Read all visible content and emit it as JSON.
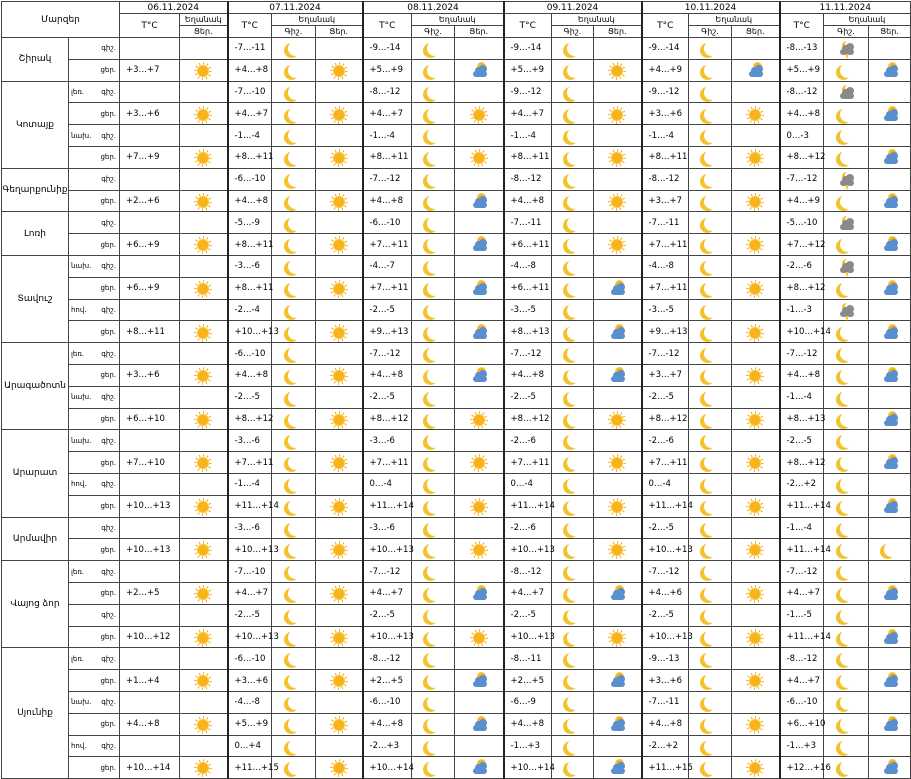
{
  "header": {
    "region_label": "Մարզեր",
    "temp_label": "T°C",
    "weather_label": "Եղանակ",
    "night_abbr": "Գիշ.",
    "day_abbr": "Ցեր.",
    "first_day_abbr": "Ցեր.",
    "dates": [
      "06.11.2024",
      "07.11.2024",
      "08.11.2024",
      "09.11.2024",
      "10.11.2024",
      "11.11.2024"
    ]
  },
  "regions": [
    {
      "name": "Շիրակ",
      "subs": [
        {
          "label": "",
          "periods": [
            {
              "p": "գիշ.",
              "t0": "",
              "t": [
                "-7…-11",
                "-9…-14",
                "-9…-14",
                "-9…-14",
                "-8…-13"
              ],
              "w": [
                "moon",
                "moon",
                "moon",
                "moon",
                "moon-cloud-storm"
              ]
            },
            {
              "p": "ցեր.",
              "t0": "+3…+7",
              "w0": "sun",
              "t": [
                "+4…+8",
                "+5…+9",
                "+5…+9",
                "+4…+9",
                "+5…+9"
              ],
              "w": [
                "sun",
                "sun-cloud",
                "sun",
                "sun-cloud",
                "sun-cloud"
              ]
            }
          ]
        }
      ]
    },
    {
      "name": "Կոտայք",
      "subs": [
        {
          "label": "լեռ.",
          "periods": [
            {
              "p": "գիշ.",
              "t0": "",
              "t": [
                "-7…-10",
                "-8…-12",
                "-9…-12",
                "-9…-12",
                "-8…-12"
              ],
              "w": [
                "moon",
                "moon",
                "moon",
                "moon",
                "moon-cloud-gray"
              ]
            },
            {
              "p": "ցեր.",
              "t0": "+3…+6",
              "w0": "sun",
              "t": [
                "+4…+7",
                "+4…+7",
                "+4…+7",
                "+3…+6",
                "+4…+8"
              ],
              "w": [
                "sun",
                "sun",
                "sun",
                "sun",
                "sun-cloud"
              ]
            }
          ]
        },
        {
          "label": "նախ.",
          "periods": [
            {
              "p": "գիշ.",
              "t0": "",
              "t": [
                "-1…-4",
                "-1…-4",
                "-1…-4",
                "-1…-4",
                "0…-3"
              ],
              "w": [
                "moon",
                "moon",
                "moon",
                "moon",
                "moon"
              ]
            },
            {
              "p": "ցեր.",
              "t0": "+7…+9",
              "w0": "sun",
              "t": [
                "+8…+11",
                "+8…+11",
                "+8…+11",
                "+8…+11",
                "+8…+12"
              ],
              "w": [
                "sun",
                "sun",
                "sun",
                "sun",
                "sun-cloud"
              ]
            }
          ]
        }
      ]
    },
    {
      "name": "Գեղարքունիք",
      "subs": [
        {
          "label": "",
          "periods": [
            {
              "p": "գիշ.",
              "t0": "",
              "t": [
                "-6…-10",
                "-7…-12",
                "-8…-12",
                "-8…-12",
                "-7…-12"
              ],
              "w": [
                "moon",
                "moon",
                "moon",
                "moon",
                "moon-cloud-storm"
              ]
            },
            {
              "p": "ցեր.",
              "t0": "+2…+6",
              "w0": "sun",
              "t": [
                "+4…+8",
                "+4…+8",
                "+4…+8",
                "+3…+7",
                "+4…+9"
              ],
              "w": [
                "sun",
                "sun-cloud",
                "sun",
                "sun",
                "sun-cloud"
              ]
            }
          ]
        }
      ]
    },
    {
      "name": "Լոռի",
      "subs": [
        {
          "label": "",
          "periods": [
            {
              "p": "գիշ.",
              "t0": "",
              "t": [
                "-5…-9",
                "-6…-10",
                "-7…-11",
                "-7…-11",
                "-5…-10"
              ],
              "w": [
                "moon",
                "moon",
                "moon",
                "moon",
                "moon-cloud-gray"
              ]
            },
            {
              "p": "ցեր.",
              "t0": "+6…+9",
              "w0": "sun",
              "t": [
                "+8…+11",
                "+7…+11",
                "+6…+11",
                "+7…+11",
                "+7…+12"
              ],
              "w": [
                "sun",
                "sun-cloud",
                "sun",
                "sun",
                "sun-cloud"
              ]
            }
          ]
        }
      ]
    },
    {
      "name": "Տավուշ",
      "subs": [
        {
          "label": "նախ.",
          "periods": [
            {
              "p": "գիշ.",
              "t0": "",
              "t": [
                "-3…-6",
                "-4…-7",
                "-4…-8",
                "-4…-8",
                "-2…-6"
              ],
              "w": [
                "moon",
                "moon",
                "moon",
                "moon",
                "moon-cloud-storm"
              ]
            },
            {
              "p": "ցեր.",
              "t0": "+6…+9",
              "w0": "sun",
              "t": [
                "+8…+11",
                "+7…+11",
                "+6…+11",
                "+7…+11",
                "+8…+12"
              ],
              "w": [
                "sun",
                "sun-cloud",
                "sun-cloud",
                "sun",
                "sun-cloud"
              ]
            }
          ]
        },
        {
          "label": "հով.",
          "periods": [
            {
              "p": "գիշ.",
              "t0": "",
              "t": [
                "-2…-4",
                "-2…-5",
                "-3…-5",
                "-3…-5",
                "-1…-3"
              ],
              "w": [
                "moon",
                "moon",
                "moon",
                "moon",
                "moon-cloud-storm"
              ]
            },
            {
              "p": "ցեր.",
              "t0": "+8…+11",
              "w0": "sun",
              "t": [
                "+10…+13",
                "+9…+13",
                "+8…+13",
                "+9…+13",
                "+10…+14"
              ],
              "w": [
                "sun",
                "sun-cloud",
                "sun-cloud",
                "sun",
                "sun-cloud"
              ]
            }
          ]
        }
      ]
    },
    {
      "name": "Արագածոտն",
      "subs": [
        {
          "label": "լեռ.",
          "periods": [
            {
              "p": "գիշ.",
              "t0": "",
              "t": [
                "-6…-10",
                "-7…-12",
                "-7…-12",
                "-7…-12",
                "-7…-12"
              ],
              "w": [
                "moon",
                "moon",
                "moon",
                "moon",
                "moon"
              ]
            },
            {
              "p": "ցեր.",
              "t0": "+3…+6",
              "w0": "sun",
              "t": [
                "+4…+8",
                "+4…+8",
                "+4…+8",
                "+3…+7",
                "+4…+8"
              ],
              "w": [
                "sun",
                "sun-cloud",
                "sun-cloud",
                "sun",
                "sun-cloud"
              ]
            }
          ]
        },
        {
          "label": "նախ.",
          "periods": [
            {
              "p": "գիշ.",
              "t0": "",
              "t": [
                "-2…-5",
                "-2…-5",
                "-2…-5",
                "-2…-5",
                "-1…-4"
              ],
              "w": [
                "moon",
                "moon",
                "moon",
                "moon",
                "moon"
              ]
            },
            {
              "p": "ցեր.",
              "t0": "+6…+10",
              "w0": "sun",
              "t": [
                "+8…+12",
                "+8…+12",
                "+8…+12",
                "+8…+12",
                "+8…+13"
              ],
              "w": [
                "sun",
                "sun",
                "sun",
                "sun",
                "sun-cloud"
              ]
            }
          ]
        }
      ]
    },
    {
      "name": "Արարատ",
      "subs": [
        {
          "label": "նախ.",
          "periods": [
            {
              "p": "գիշ.",
              "t0": "",
              "t": [
                "-3…-6",
                "-3…-6",
                "-2…-6",
                "-2…-6",
                "-2…-5"
              ],
              "w": [
                "moon",
                "moon",
                "moon",
                "moon",
                "moon"
              ]
            },
            {
              "p": "ցեր.",
              "t0": "+7…+10",
              "w0": "sun",
              "t": [
                "+7…+11",
                "+7…+11",
                "+7…+11",
                "+7…+11",
                "+8…+12"
              ],
              "w": [
                "sun",
                "sun",
                "sun",
                "sun",
                "sun-cloud"
              ]
            }
          ]
        },
        {
          "label": "հով.",
          "periods": [
            {
              "p": "գիշ.",
              "t0": "",
              "t": [
                "-1…-4",
                "0…-4",
                "0…-4",
                "0…-4",
                "-2…+2"
              ],
              "w": [
                "moon",
                "moon",
                "moon",
                "moon",
                "moon"
              ]
            },
            {
              "p": "ցեր.",
              "t0": "+10…+13",
              "w0": "sun",
              "t": [
                "+11…+14",
                "+11…+14",
                "+11…+14",
                "+11…+14",
                "+11…+14"
              ],
              "w": [
                "sun",
                "sun",
                "sun",
                "sun",
                "sun-cloud"
              ]
            }
          ]
        }
      ]
    },
    {
      "name": "Արմավիր",
      "subs": [
        {
          "label": "",
          "periods": [
            {
              "p": "գիշ.",
              "t0": "",
              "t": [
                "-3…-6",
                "-3…-6",
                "-2…-6",
                "-2…-5",
                "-1…-4"
              ],
              "w": [
                "moon",
                "moon",
                "moon",
                "moon",
                "moon"
              ]
            },
            {
              "p": "ցեր.",
              "t0": "+10…+13",
              "w0": "sun",
              "t": [
                "+10…+13",
                "+10…+13",
                "+10…+13",
                "+10…+13",
                "+11…+14"
              ],
              "w": [
                "sun",
                "sun",
                "sun",
                "sun",
                "moon"
              ]
            }
          ]
        }
      ]
    },
    {
      "name": "Վայոց ձոր",
      "subs": [
        {
          "label": "լեռ.",
          "periods": [
            {
              "p": "գիշ.",
              "t0": "",
              "t": [
                "-7…-10",
                "-7…-12",
                "-8…-12",
                "-7…-12",
                "-7…-12"
              ],
              "w": [
                "moon",
                "moon",
                "moon",
                "moon",
                "moon"
              ]
            },
            {
              "p": "ցեր.",
              "t0": "+2…+5",
              "w0": "sun",
              "t": [
                "+4…+7",
                "+4…+7",
                "+4…+7",
                "+4…+6",
                "+4…+7"
              ],
              "w": [
                "sun",
                "sun-cloud",
                "sun-cloud",
                "sun",
                "sun-cloud"
              ]
            }
          ]
        },
        {
          "label": "",
          "periods": [
            {
              "p": "գիշ.",
              "t0": "",
              "t": [
                "-2…-5",
                "-2…-5",
                "-2…-5",
                "-2…-5",
                "-1…-5"
              ],
              "w": [
                "moon",
                "moon",
                "moon",
                "moon",
                "moon"
              ]
            },
            {
              "p": "ցեր.",
              "t0": "+10…+12",
              "w0": "sun",
              "t": [
                "+10…+13",
                "+10…+13",
                "+10…+13",
                "+10…+13",
                "+11…+14"
              ],
              "w": [
                "sun",
                "sun",
                "sun",
                "sun",
                "sun-cloud"
              ]
            }
          ]
        }
      ]
    },
    {
      "name": "Սյունիք",
      "subs": [
        {
          "label": "լեռ.",
          "periods": [
            {
              "p": "գիշ.",
              "t0": "",
              "t": [
                "-6…-10",
                "-8…-12",
                "-8…-11",
                "-9…-13",
                "-8…-12"
              ],
              "w": [
                "moon",
                "moon",
                "moon",
                "moon",
                "moon"
              ]
            },
            {
              "p": "ցեր.",
              "t0": "+1…+4",
              "w0": "sun",
              "t": [
                "+3…+6",
                "+2…+5",
                "+2…+5",
                "+3…+6",
                "+4…+7"
              ],
              "w": [
                "sun",
                "sun-cloud",
                "sun-cloud",
                "sun",
                "sun-cloud"
              ]
            }
          ]
        },
        {
          "label": "նախ.",
          "periods": [
            {
              "p": "գիշ.",
              "t0": "",
              "t": [
                "-4…-8",
                "-6…-10",
                "-6…-9",
                "-7…-11",
                "-6…-10"
              ],
              "w": [
                "moon",
                "moon",
                "moon",
                "moon",
                "moon"
              ]
            },
            {
              "p": "ցեր.",
              "t0": "+4…+8",
              "w0": "sun",
              "t": [
                "+5…+9",
                "+4…+8",
                "+4…+8",
                "+4…+8",
                "+6…+10"
              ],
              "w": [
                "sun",
                "sun-cloud",
                "sun-cloud",
                "sun",
                "sun-cloud"
              ]
            }
          ]
        },
        {
          "label": "հով.",
          "periods": [
            {
              "p": "գիշ.",
              "t0": "",
              "t": [
                "0…+4",
                "-2…+3",
                "-1…+3",
                "-2…+2",
                "-1…+3"
              ],
              "w": [
                "moon",
                "moon",
                "moon",
                "moon",
                "moon"
              ]
            },
            {
              "p": "ցեր.",
              "t0": "+10…+14",
              "w0": "sun",
              "t": [
                "+11…+15",
                "+10…+14",
                "+10…+14",
                "+11…+15",
                "+12…+16"
              ],
              "w": [
                "sun",
                "sun-cloud",
                "sun-cloud",
                "sun",
                "sun-cloud"
              ]
            }
          ]
        }
      ]
    }
  ],
  "colors": {
    "sun": "#f7b21c",
    "moon": "#f4c22a",
    "cloud": "#5a8fcf",
    "cloud_gray": "#8a8a8a",
    "border": "#444444"
  },
  "icon_legend": {
    "sun": "sun-icon",
    "moon": "moon-icon",
    "sun-cloud": "sun-behind-cloud-icon",
    "moon-cloud-gray": "moon-behind-gray-cloud-icon",
    "moon-cloud-storm": "moon-cloud-lightning-icon"
  }
}
